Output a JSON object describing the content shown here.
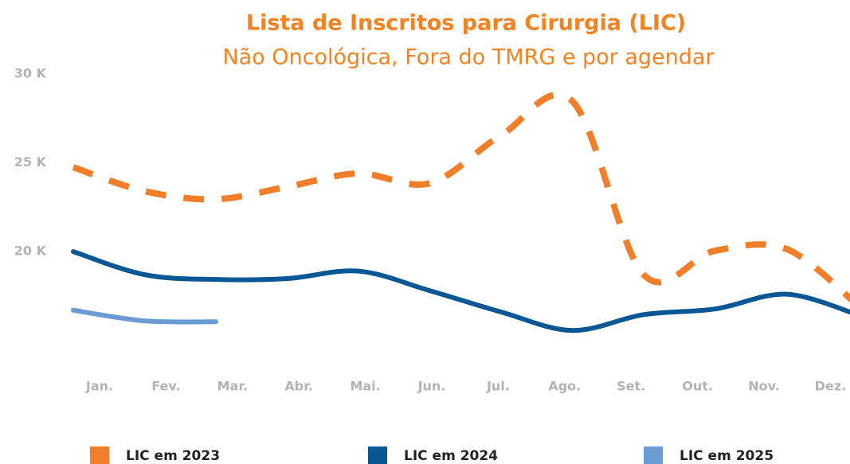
{
  "chart_data": {
    "type": "line",
    "title": "Lista de Inscritos para Cirurgia (LIC)",
    "subtitle": "Não Oncológica, Fora do TMRG e por agendar",
    "categories": [
      "Jan.",
      "Fev.",
      "Mar.",
      "Abr.",
      "Mai.",
      "Jun.",
      "Jul.",
      "Ago.",
      "Set.",
      "Out.",
      "Nov.",
      "Dez."
    ],
    "ylim": [
      14000,
      30000
    ],
    "yticks": [
      {
        "value": 20000,
        "label": "20 K"
      },
      {
        "value": 25000,
        "label": "25 K"
      },
      {
        "value": 30000,
        "label": "30 K"
      }
    ],
    "grid": false,
    "series": [
      {
        "name": "LIC em 2023",
        "color": "#f37e2a",
        "dashed": true,
        "values": [
          24750,
          23400,
          22950,
          23650,
          24400,
          23850,
          26550,
          28470,
          18700,
          20050,
          20150,
          17000
        ]
      },
      {
        "name": "LIC em 2024",
        "color": "#0a5796",
        "values": [
          20000,
          18700,
          18430,
          18480,
          18900,
          17800,
          16600,
          15560,
          16450,
          16770,
          17600,
          16450
        ]
      },
      {
        "name": "LIC em 2025",
        "color": "#6a9bd3",
        "values": [
          16700,
          16100,
          16050,
          null,
          null,
          null,
          null,
          null,
          null,
          null,
          null,
          null
        ]
      }
    ]
  }
}
